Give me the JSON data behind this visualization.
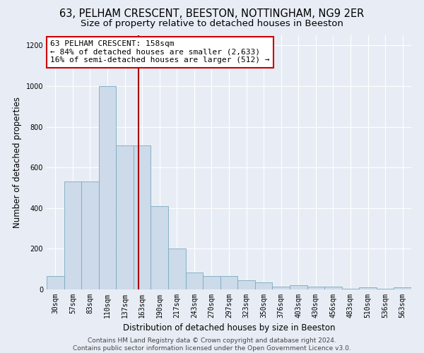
{
  "title1": "63, PELHAM CRESCENT, BEESTON, NOTTINGHAM, NG9 2ER",
  "title2": "Size of property relative to detached houses in Beeston",
  "xlabel": "Distribution of detached houses by size in Beeston",
  "ylabel": "Number of detached properties",
  "categories": [
    "30sqm",
    "57sqm",
    "83sqm",
    "110sqm",
    "137sqm",
    "163sqm",
    "190sqm",
    "217sqm",
    "243sqm",
    "270sqm",
    "297sqm",
    "323sqm",
    "350sqm",
    "376sqm",
    "403sqm",
    "430sqm",
    "456sqm",
    "483sqm",
    "510sqm",
    "536sqm",
    "563sqm"
  ],
  "values": [
    65,
    530,
    530,
    1000,
    710,
    710,
    410,
    200,
    85,
    65,
    65,
    45,
    35,
    15,
    20,
    15,
    15,
    5,
    10,
    5,
    10
  ],
  "bar_color": "#ccdaea",
  "bar_edge_color": "#7aaabf",
  "vline_color": "#aa0000",
  "annotation_text": "63 PELHAM CRESCENT: 158sqm\n← 84% of detached houses are smaller (2,633)\n16% of semi-detached houses are larger (512) →",
  "annotation_box_color": "white",
  "annotation_box_edge_color": "#cc0000",
  "ylim": [
    0,
    1250
  ],
  "yticks": [
    0,
    200,
    400,
    600,
    800,
    1000,
    1200
  ],
  "background_color": "#e8edf5",
  "plot_bg_color": "#e8edf5",
  "footer": "Contains HM Land Registry data © Crown copyright and database right 2024.\nContains public sector information licensed under the Open Government Licence v3.0.",
  "title1_fontsize": 10.5,
  "title2_fontsize": 9.5,
  "xlabel_fontsize": 8.5,
  "ylabel_fontsize": 8.5,
  "tick_fontsize": 7,
  "annotation_fontsize": 8,
  "footer_fontsize": 6.5,
  "vline_position": 4.808
}
